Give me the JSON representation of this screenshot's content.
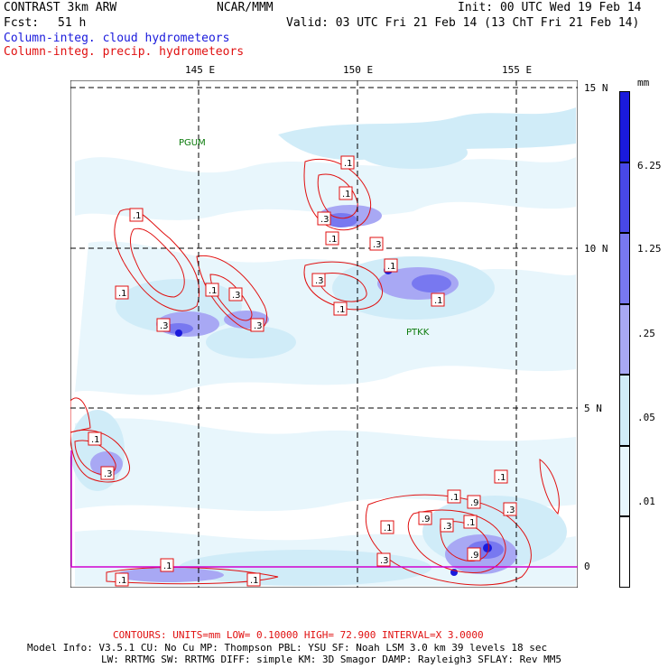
{
  "header": {
    "model": "CONTRAST  3km ARW",
    "org": "NCAR/MMM",
    "init": "Init: 00 UTC Wed 19 Feb 14",
    "fcst_label": "Fcst:",
    "fcst_value": "51 h",
    "valid": "Valid: 03 UTC Fri 21 Feb 14 (13 ChT Fri 21 Feb 14)",
    "field1": "Column-integ. cloud hydrometeors",
    "field2": "Column-integ. precip. hydrometeors"
  },
  "axes": {
    "lon_labels": [
      "145 E",
      "150 E",
      "155 E"
    ],
    "lat_labels": [
      "15 N",
      "10 N",
      "5 N",
      "0"
    ]
  },
  "stations": [
    "PGUM",
    "PTKK"
  ],
  "contour_labels": [
    ".1",
    ".1",
    ".3",
    ".1",
    ".3",
    ".3",
    ".1",
    ".1",
    ".3",
    ".1",
    ".3",
    ".1",
    ".3",
    ".1",
    ".1",
    ".1",
    ".3",
    ".1",
    ".1",
    ".9",
    ".1",
    ".9",
    ".3",
    ".1",
    ".3",
    ".9",
    ".3",
    ".1",
    ".1",
    ".1"
  ],
  "colorbar": {
    "unit": "mm",
    "levels": [
      "6.25",
      "1.25",
      ".25",
      ".05",
      ".01"
    ],
    "colors": [
      "#1a1adc",
      "#4848e8",
      "#7878f0",
      "#a8a8f4",
      "#d0ecf8",
      "#e8f6fc",
      "#ffffff"
    ]
  },
  "footer": {
    "contours": "CONTOURS:  UNITS=mm  LOW= 0.10000    HIGH= 72.900    INTERVAL=X  3.0000",
    "info1": "Model Info: V3.5.1    CU: No Cu    MP: Thompson    PBL: YSU     SF: Noah LSM    3.0 km   39 levels   18 sec",
    "info2": "LW: RRTMG    SW: RRTMG   DIFF: simple KM: 3D Smagor DAMP: Rayleigh3   SFLAY: Rev MM5"
  }
}
